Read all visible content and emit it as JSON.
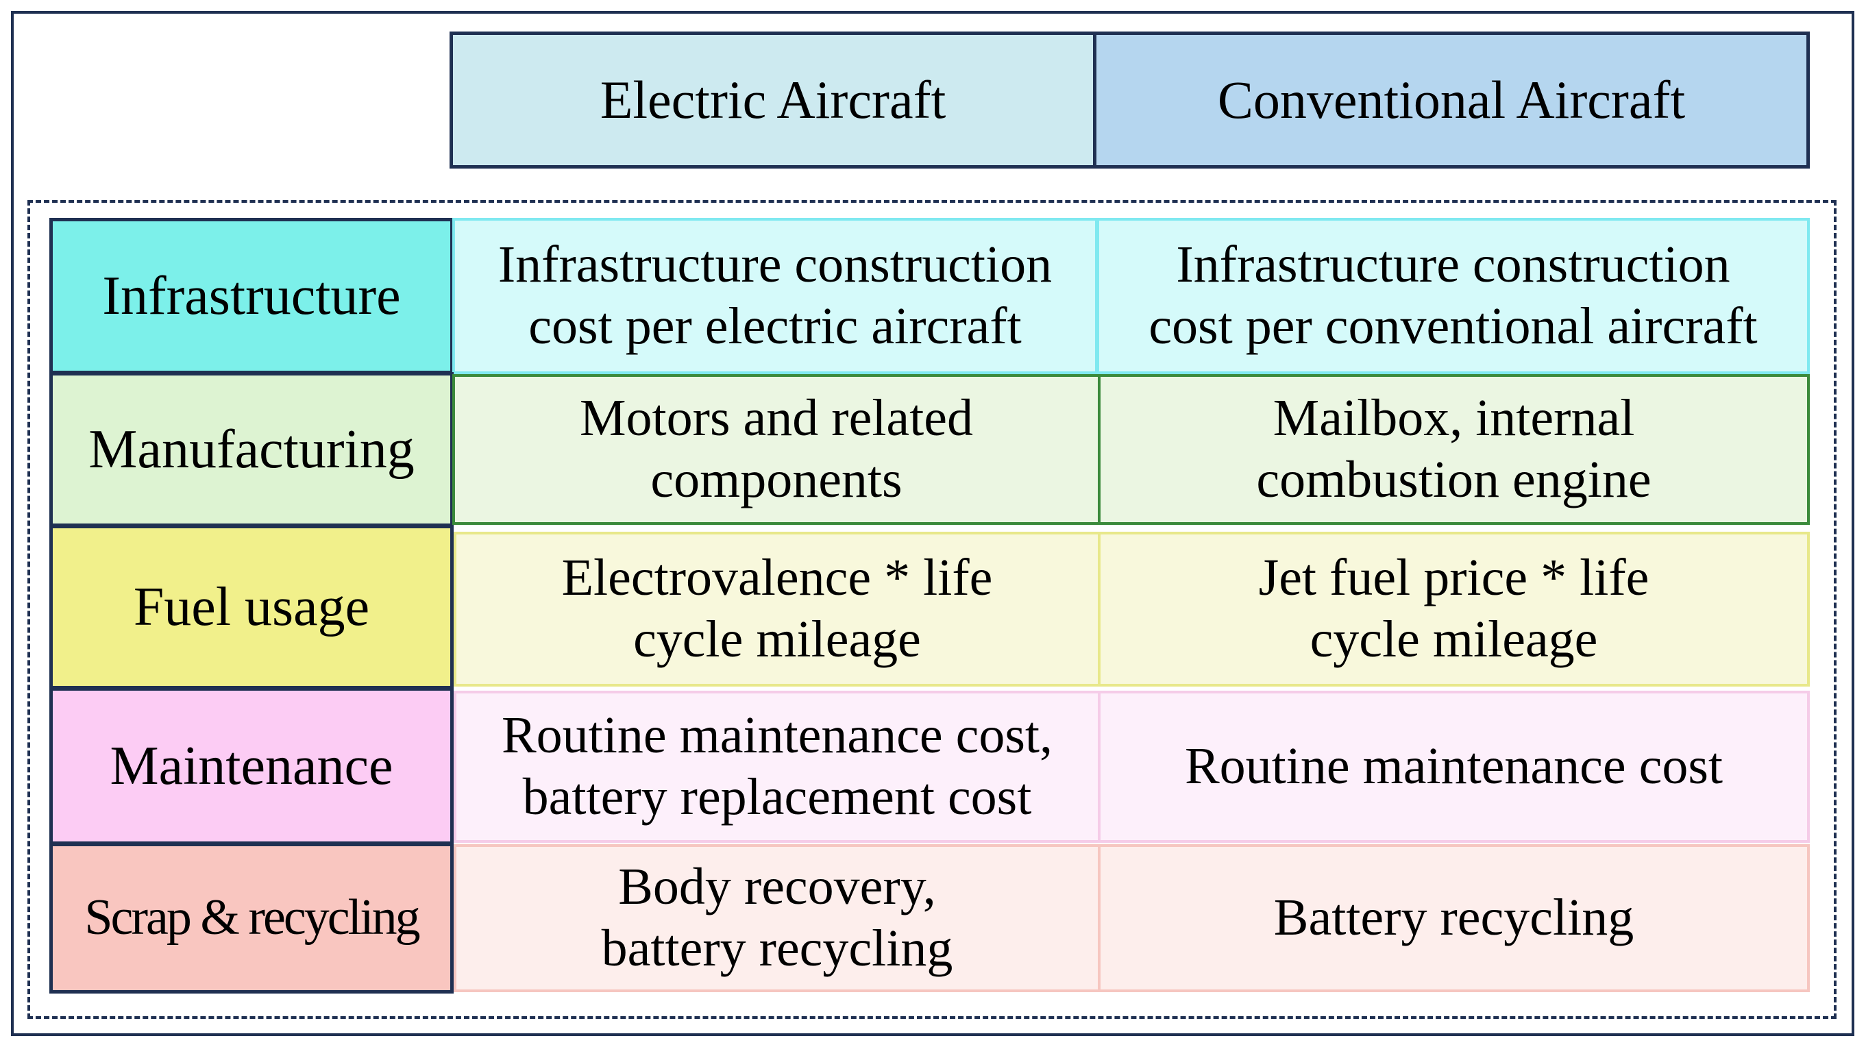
{
  "columns": {
    "electric": "Electric Aircraft",
    "conventional": "Conventional Aircraft"
  },
  "rows": [
    {
      "label": "Infrastructure",
      "electric": "Infrastructure construction\ncost per electric aircraft",
      "conventional": "Infrastructure construction\ncost per conventional aircraft"
    },
    {
      "label": "Manufacturing",
      "electric": "Motors and related\ncomponents",
      "conventional": "Mailbox, internal\ncombustion engine"
    },
    {
      "label": "Fuel usage",
      "electric": "Electrovalence * life\ncycle mileage",
      "conventional": "Jet fuel price * life\ncycle mileage"
    },
    {
      "label": "Maintenance",
      "electric": "Routine maintenance cost,\nbattery replacement cost",
      "conventional": "Routine maintenance cost"
    },
    {
      "label": "Scrap & recycling",
      "electric": "Body recovery,\nbattery recycling",
      "conventional": "Battery recycling"
    }
  ],
  "colors": {
    "frame": "#1f3052",
    "header_electric": "#cdeaf0",
    "header_conventional": "#b5d6ef",
    "infrastructure_label": "#7cf0ea",
    "infrastructure_content": "#d5fafa",
    "infrastructure_border": "#7fe9f0",
    "manufacturing_label": "#ddf3d2",
    "manufacturing_content": "#ebf6e2",
    "manufacturing_border": "#3b8a3b",
    "fuel_label": "#f1f08b",
    "fuel_content": "#f8f8dc",
    "fuel_border": "#e8e88a",
    "maintenance_label": "#fcccf4",
    "maintenance_content": "#fdf0fb",
    "maintenance_border": "#f5cce8",
    "scrap_label": "#f9c6c0",
    "scrap_content": "#fdeeec",
    "scrap_border": "#f6c6c0"
  }
}
